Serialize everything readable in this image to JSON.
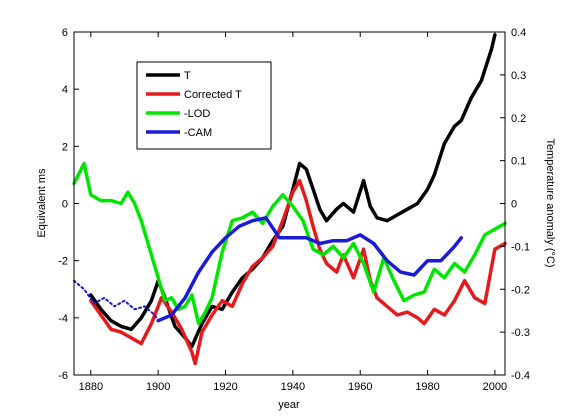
{
  "chart_data": {
    "type": "line",
    "xlabel": "year",
    "ylabel_left": "Equivalent ms",
    "ylabel_right": "Temperature anomaly (°C)",
    "xlim": [
      1875,
      2003
    ],
    "ylim_left": [
      -6,
      6
    ],
    "ylim_right": [
      -0.4,
      0.4
    ],
    "grid": false,
    "legend_position": "top-left",
    "x_ticks": [
      1880,
      1900,
      1920,
      1940,
      1960,
      1980,
      2000
    ],
    "x_tick_labels": [
      "1880",
      "1900",
      "1920",
      "1940",
      "1960",
      "1980",
      "2000"
    ],
    "y_left_ticks": [
      -6,
      -4,
      -2,
      0,
      2,
      4,
      6
    ],
    "y_left_tick_labels": [
      "-6",
      "-4",
      "-2",
      "0",
      "2",
      "4",
      "6"
    ],
    "y_right_ticks": [
      -0.4,
      -0.3,
      -0.2,
      -0.1,
      0,
      0.1,
      0.2,
      0.3,
      0.4
    ],
    "y_right_tick_labels": [
      "-0.4",
      "-0.3",
      "-0.2",
      "-0.1",
      "0",
      "0.1",
      "0.2",
      "0.3",
      "0.4"
    ],
    "series": [
      {
        "name": "T",
        "color": "#000000",
        "style": "solid",
        "x": [
          1880,
          1883,
          1886,
          1889,
          1892,
          1895,
          1898,
          1900,
          1902,
          1905,
          1908,
          1910,
          1913,
          1916,
          1919,
          1922,
          1925,
          1928,
          1931,
          1934,
          1937,
          1940,
          1942,
          1944,
          1946,
          1948,
          1950,
          1953,
          1955,
          1958,
          1961,
          1963,
          1965,
          1968,
          1971,
          1974,
          1977,
          1980,
          1982,
          1985,
          1988,
          1990,
          1993,
          1996,
          1999,
          2000
        ],
        "values": [
          -3.2,
          -3.7,
          -4.1,
          -4.3,
          -4.4,
          -4.0,
          -3.4,
          -2.7,
          -3.3,
          -4.3,
          -4.7,
          -5.0,
          -4.2,
          -3.6,
          -3.7,
          -3.1,
          -2.6,
          -2.3,
          -1.9,
          -1.3,
          -0.8,
          0.5,
          1.4,
          1.2,
          0.5,
          -0.2,
          -0.6,
          -0.2,
          0.0,
          -0.3,
          0.8,
          -0.1,
          -0.5,
          -0.6,
          -0.4,
          -0.2,
          0.0,
          0.5,
          1.0,
          2.1,
          2.7,
          2.9,
          3.7,
          4.3,
          5.4,
          5.9
        ]
      },
      {
        "name": "Corrected T",
        "color": "#e41a1c",
        "style": "solid",
        "x": [
          1880,
          1883,
          1886,
          1889,
          1892,
          1895,
          1898,
          1901,
          1904,
          1907,
          1910,
          1911,
          1913,
          1916,
          1919,
          1922,
          1925,
          1928,
          1931,
          1934,
          1937,
          1940,
          1942,
          1944,
          1946,
          1948,
          1950,
          1953,
          1955,
          1958,
          1961,
          1963,
          1965,
          1968,
          1971,
          1974,
          1977,
          1979,
          1982,
          1985,
          1988,
          1991,
          1994,
          1997,
          2000,
          2003
        ],
        "values": [
          -3.4,
          -3.9,
          -4.4,
          -4.5,
          -4.7,
          -4.9,
          -4.2,
          -3.3,
          -3.8,
          -4.4,
          -5.2,
          -5.6,
          -4.5,
          -3.9,
          -3.4,
          -3.6,
          -2.8,
          -2.2,
          -1.9,
          -1.5,
          -0.6,
          0.4,
          0.8,
          0.1,
          -0.8,
          -1.6,
          -2.1,
          -2.4,
          -1.8,
          -2.6,
          -1.6,
          -2.7,
          -3.3,
          -3.6,
          -3.9,
          -3.8,
          -4.0,
          -4.2,
          -3.7,
          -3.9,
          -3.4,
          -2.7,
          -3.3,
          -3.5,
          -1.6,
          -1.4
        ]
      },
      {
        "name": "-LOD",
        "color": "#00e600",
        "style": "solid",
        "x": [
          1875,
          1878,
          1880,
          1883,
          1886,
          1889,
          1891,
          1893,
          1895,
          1898,
          1900,
          1902,
          1904,
          1906,
          1908,
          1910,
          1912,
          1914,
          1916,
          1919,
          1922,
          1925,
          1928,
          1931,
          1934,
          1937,
          1940,
          1943,
          1946,
          1949,
          1952,
          1955,
          1958,
          1961,
          1964,
          1967,
          1970,
          1973,
          1976,
          1979,
          1982,
          1985,
          1988,
          1991,
          1994,
          1997,
          2000,
          2003
        ],
        "values": [
          0.7,
          1.4,
          0.3,
          0.1,
          0.1,
          0.0,
          0.4,
          0.0,
          -0.6,
          -1.8,
          -2.6,
          -3.4,
          -3.3,
          -3.7,
          -3.6,
          -3.2,
          -4.2,
          -3.8,
          -3.3,
          -1.7,
          -0.6,
          -0.5,
          -0.3,
          -0.7,
          -0.1,
          0.3,
          -0.1,
          -0.6,
          -1.6,
          -1.8,
          -1.5,
          -1.9,
          -1.4,
          -2.1,
          -3.1,
          -1.9,
          -2.7,
          -3.4,
          -3.2,
          -3.1,
          -2.3,
          -2.6,
          -2.1,
          -2.4,
          -1.8,
          -1.1,
          -0.9,
          -0.7
        ]
      },
      {
        "name": "-CAM",
        "color": "#1a1ad9",
        "style": "solid",
        "x": [
          1900,
          1904,
          1908,
          1912,
          1916,
          1920,
          1924,
          1928,
          1932,
          1936,
          1940,
          1944,
          1948,
          1952,
          1956,
          1960,
          1964,
          1968,
          1972,
          1976,
          1980,
          1984,
          1988,
          1990
        ],
        "values": [
          -4.1,
          -3.9,
          -3.3,
          -2.4,
          -1.7,
          -1.2,
          -0.8,
          -0.6,
          -0.5,
          -1.2,
          -1.2,
          -1.2,
          -1.4,
          -1.3,
          -1.3,
          -1.1,
          -1.4,
          -2.0,
          -2.4,
          -2.5,
          -2.0,
          -2.0,
          -1.5,
          -1.2
        ]
      },
      {
        "color": "#1a1ad9",
        "style": "dotted",
        "x": [
          1875,
          1878,
          1881,
          1884,
          1887,
          1890,
          1893,
          1896,
          1899,
          1900
        ],
        "values": [
          -2.7,
          -3.0,
          -3.5,
          -3.3,
          -3.6,
          -3.4,
          -3.7,
          -3.6,
          -3.9,
          -4.1
        ]
      }
    ],
    "legend": [
      {
        "label": "T",
        "color": "#000000"
      },
      {
        "label": "Corrected T",
        "color": "#e41a1c"
      },
      {
        "label": "-LOD",
        "color": "#00e600"
      },
      {
        "label": "-CAM",
        "color": "#1a1ad9"
      }
    ]
  }
}
